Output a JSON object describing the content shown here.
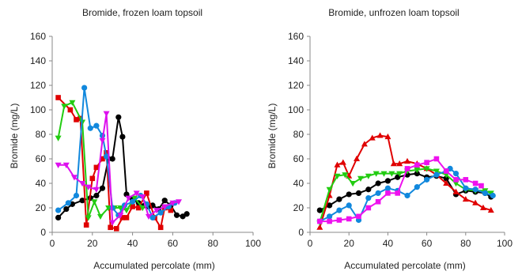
{
  "chart_data": [
    {
      "type": "line",
      "title": "Bromide, frozen loam topsoil",
      "xlabel": "Accumulated percolate (mm)",
      "ylabel": "Bromide (mg/L)",
      "xlim": [
        0,
        100
      ],
      "ylim": [
        0,
        160
      ],
      "xticks": [
        0,
        20,
        40,
        60,
        80,
        100
      ],
      "yticks": [
        0,
        20,
        40,
        60,
        80,
        100,
        120,
        140,
        160
      ],
      "grid": false,
      "legend": "none",
      "series": [
        {
          "color": "#000000",
          "marker": "circle",
          "points": [
            [
              3,
              12
            ],
            [
              7,
              19
            ],
            [
              10,
              23
            ],
            [
              15,
              26
            ],
            [
              19,
              28
            ],
            [
              22,
              30
            ],
            [
              25,
              36
            ],
            [
              28,
              60
            ],
            [
              30,
              60
            ],
            [
              33,
              94
            ],
            [
              35,
              78
            ],
            [
              37,
              31
            ],
            [
              40,
              27
            ],
            [
              43,
              24
            ],
            [
              46,
              22
            ],
            [
              48,
              21
            ],
            [
              50,
              22
            ],
            [
              53,
              19
            ],
            [
              56,
              26
            ],
            [
              59,
              22
            ],
            [
              62,
              14
            ],
            [
              65,
              13
            ],
            [
              67,
              15
            ]
          ]
        },
        {
          "color": "#E00000",
          "marker": "square",
          "points": [
            [
              3,
              110
            ],
            [
              9,
              100
            ],
            [
              12,
              92
            ],
            [
              14,
              93
            ],
            [
              17,
              6
            ],
            [
              20,
              44
            ],
            [
              22,
              53
            ],
            [
              25,
              60
            ],
            [
              27,
              65
            ],
            [
              29,
              4
            ],
            [
              32,
              3
            ],
            [
              35,
              12
            ],
            [
              37,
              12
            ],
            [
              40,
              21
            ],
            [
              43,
              20
            ],
            [
              47,
              32
            ],
            [
              51,
              12
            ],
            [
              54,
              4
            ],
            [
              56,
              20
            ],
            [
              59,
              18
            ]
          ]
        },
        {
          "color": "#22CC11",
          "marker": "triangle-down",
          "points": [
            [
              3,
              77
            ],
            [
              6,
              103
            ],
            [
              10,
              106
            ],
            [
              15,
              90
            ],
            [
              18,
              12
            ],
            [
              21,
              25
            ],
            [
              24,
              13
            ],
            [
              28,
              20
            ],
            [
              31,
              20
            ],
            [
              34,
              20
            ],
            [
              37,
              18
            ],
            [
              41,
              28
            ],
            [
              45,
              20
            ]
          ]
        },
        {
          "color": "#1188DD",
          "marker": "circle",
          "points": [
            [
              3,
              18
            ],
            [
              8,
              24
            ],
            [
              12,
              30
            ],
            [
              16,
              118
            ],
            [
              19,
              85
            ],
            [
              22,
              87
            ],
            [
              25,
              79
            ],
            [
              27,
              62
            ],
            [
              30,
              20
            ],
            [
              33,
              14
            ],
            [
              36,
              22
            ],
            [
              40,
              25
            ],
            [
              44,
              30
            ],
            [
              47,
              23
            ],
            [
              50,
              12
            ],
            [
              54,
              16
            ],
            [
              58,
              21
            ],
            [
              61,
              24
            ]
          ]
        },
        {
          "color": "#DD11EE",
          "marker": "triangle-down",
          "points": [
            [
              3,
              55
            ],
            [
              7,
              55
            ],
            [
              11,
              45
            ],
            [
              15,
              40
            ],
            [
              18,
              37
            ],
            [
              22,
              35
            ],
            [
              25,
              75
            ],
            [
              27,
              97
            ],
            [
              30,
              8
            ],
            [
              34,
              14
            ],
            [
              38,
              28
            ],
            [
              42,
              32
            ],
            [
              45,
              29
            ],
            [
              48,
              13
            ],
            [
              52,
              18
            ],
            [
              56,
              21
            ],
            [
              60,
              24
            ],
            [
              63,
              25
            ]
          ]
        }
      ]
    },
    {
      "type": "line",
      "title": "Bromide, unfrozen loam topsoil",
      "xlabel": "Accumulated percolate (mm)",
      "ylabel": "Bromide (mg/L)",
      "xlim": [
        0,
        100
      ],
      "ylim": [
        0,
        160
      ],
      "xticks": [
        0,
        20,
        40,
        60,
        80,
        100
      ],
      "yticks": [
        0,
        20,
        40,
        60,
        80,
        100,
        120,
        140,
        160
      ],
      "grid": false,
      "legend": "none",
      "series": [
        {
          "color": "#000000",
          "marker": "circle",
          "points": [
            [
              5,
              18
            ],
            [
              10,
              22
            ],
            [
              15,
              27
            ],
            [
              20,
              31
            ],
            [
              25,
              32
            ],
            [
              30,
              35
            ],
            [
              35,
              40
            ],
            [
              40,
              42
            ],
            [
              45,
              45
            ],
            [
              50,
              47
            ],
            [
              55,
              48
            ],
            [
              60,
              45
            ],
            [
              65,
              46
            ],
            [
              70,
              44
            ],
            [
              75,
              31
            ],
            [
              80,
              34
            ],
            [
              85,
              33
            ],
            [
              90,
              32
            ],
            [
              93,
              29
            ]
          ]
        },
        {
          "color": "#E00000",
          "marker": "triangle",
          "points": [
            [
              5,
              4
            ],
            [
              10,
              30
            ],
            [
              14,
              55
            ],
            [
              17,
              57
            ],
            [
              20,
              46
            ],
            [
              24,
              60
            ],
            [
              28,
              72
            ],
            [
              32,
              77
            ],
            [
              36,
              79
            ],
            [
              40,
              78
            ],
            [
              43,
              56
            ],
            [
              46,
              56
            ],
            [
              50,
              58
            ],
            [
              55,
              56
            ],
            [
              60,
              52
            ],
            [
              65,
              47
            ],
            [
              70,
              40
            ],
            [
              75,
              33
            ],
            [
              80,
              27
            ],
            [
              85,
              24
            ],
            [
              89,
              20
            ],
            [
              93,
              18
            ]
          ]
        },
        {
          "color": "#22CC11",
          "marker": "triangle-down",
          "points": [
            [
              5,
              8
            ],
            [
              10,
              35
            ],
            [
              14,
              46
            ],
            [
              18,
              47
            ],
            [
              22,
              40
            ],
            [
              26,
              44
            ],
            [
              30,
              46
            ],
            [
              34,
              48
            ],
            [
              38,
              48
            ],
            [
              42,
              48
            ],
            [
              46,
              48
            ],
            [
              50,
              50
            ],
            [
              55,
              51
            ],
            [
              60,
              52
            ],
            [
              65,
              50
            ],
            [
              70,
              47
            ],
            [
              75,
              40
            ],
            [
              80,
              35
            ],
            [
              85,
              34
            ],
            [
              90,
              34
            ],
            [
              93,
              32
            ]
          ]
        },
        {
          "color": "#1188DD",
          "marker": "circle",
          "points": [
            [
              5,
              9
            ],
            [
              10,
              13
            ],
            [
              15,
              18
            ],
            [
              20,
              22
            ],
            [
              25,
              10
            ],
            [
              30,
              28
            ],
            [
              35,
              32
            ],
            [
              40,
              36
            ],
            [
              45,
              34
            ],
            [
              50,
              30
            ],
            [
              55,
              37
            ],
            [
              60,
              43
            ],
            [
              65,
              47
            ],
            [
              70,
              50
            ],
            [
              72,
              52
            ],
            [
              75,
              48
            ],
            [
              80,
              36
            ],
            [
              85,
              35
            ],
            [
              90,
              32
            ],
            [
              94,
              30
            ]
          ]
        },
        {
          "color": "#EE11EE",
          "marker": "square",
          "points": [
            [
              5,
              9
            ],
            [
              10,
              9
            ],
            [
              15,
              10
            ],
            [
              20,
              11
            ],
            [
              25,
              13
            ],
            [
              30,
              20
            ],
            [
              35,
              25
            ],
            [
              40,
              32
            ],
            [
              45,
              32
            ],
            [
              50,
              52
            ],
            [
              55,
              55
            ],
            [
              60,
              57
            ],
            [
              65,
              60
            ],
            [
              70,
              50
            ],
            [
              75,
              43
            ],
            [
              80,
              43
            ],
            [
              85,
              40
            ],
            [
              88,
              38
            ]
          ]
        }
      ]
    }
  ]
}
